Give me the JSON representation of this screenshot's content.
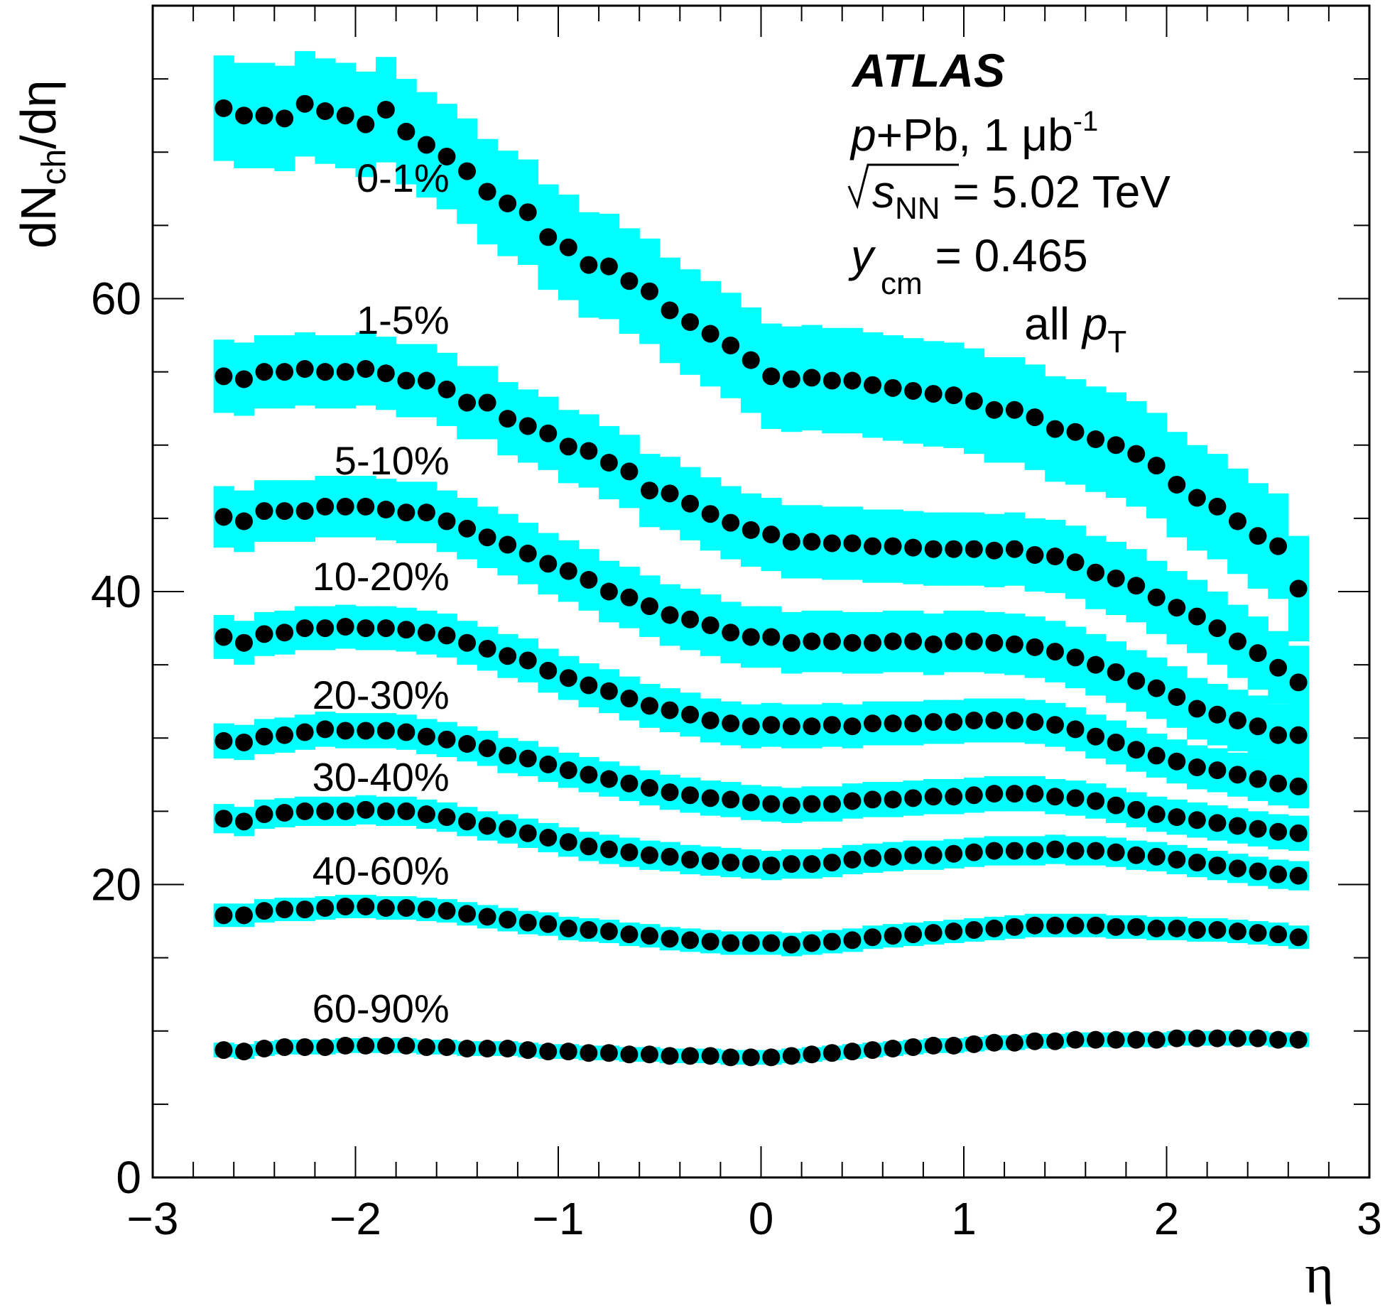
{
  "chart_data": {
    "type": "scatter",
    "xlabel": "η",
    "ylabel": {
      "main": "dN",
      "sub": "ch",
      "tail": "/dη"
    },
    "xlim": [
      -3,
      3
    ],
    "ylim": [
      0,
      80
    ],
    "xticks": [
      -3,
      -2,
      -1,
      0,
      1,
      2,
      3
    ],
    "xtick_labels": [
      "−3",
      "−2",
      "−1",
      "0",
      "1",
      "2",
      "3"
    ],
    "yticks": [
      0,
      20,
      40,
      60
    ],
    "ytick_labels": [
      "0",
      "20",
      "40",
      "60"
    ],
    "grid": false,
    "marker_color": "#000000",
    "band_color": "#00ffff",
    "info": {
      "experiment": "ATLAS",
      "line1": {
        "p": "p",
        "rest": "+Pb,  1 μb",
        "sup": "-1"
      },
      "line2": {
        "s": "s",
        "sub": "NN",
        "rest": " = 5.02 TeV"
      },
      "line3": {
        "y": "y",
        "sub": "cm",
        "rest": " = 0.465"
      },
      "line4": {
        "pre": "all ",
        "p": "p",
        "sub": "T"
      }
    },
    "x": [
      -2.65,
      -2.55,
      -2.45,
      -2.35,
      -2.25,
      -2.15,
      -2.05,
      -1.95,
      -1.85,
      -1.75,
      -1.65,
      -1.55,
      -1.45,
      -1.35,
      -1.25,
      -1.15,
      -1.05,
      -0.95,
      -0.85,
      -0.75,
      -0.65,
      -0.55,
      -0.45,
      -0.35,
      -0.25,
      -0.15,
      -0.05,
      0.05,
      0.15,
      0.25,
      0.35,
      0.45,
      0.55,
      0.65,
      0.75,
      0.85,
      0.95,
      1.05,
      1.15,
      1.25,
      1.35,
      1.45,
      1.55,
      1.65,
      1.75,
      1.85,
      1.95,
      2.05,
      2.15,
      2.25,
      2.35,
      2.45,
      2.55,
      2.65
    ],
    "series": [
      {
        "name": "0-1%",
        "band": 3.6,
        "values": [
          73.0,
          72.5,
          72.5,
          72.3,
          73.3,
          72.8,
          72.5,
          71.9,
          72.9,
          71.4,
          70.5,
          69.7,
          68.7,
          67.3,
          66.5,
          65.9,
          64.2,
          63.5,
          62.3,
          62.2,
          61.2,
          60.5,
          59.2,
          58.4,
          57.6,
          56.8,
          55.8,
          54.7,
          54.5,
          54.6,
          54.4,
          54.4,
          54.1,
          53.9,
          53.7,
          53.5,
          53.4,
          53.0,
          52.4,
          52.4,
          51.9,
          51.1,
          50.9,
          50.4,
          50.0,
          49.4,
          48.6,
          47.3,
          46.4,
          45.8,
          44.8,
          43.8,
          43.1,
          40.2
        ]
      },
      {
        "name": "1-5%",
        "band": 2.5,
        "values": [
          54.7,
          54.5,
          55.0,
          55.0,
          55.2,
          55.0,
          55.0,
          55.2,
          54.9,
          54.4,
          54.4,
          53.8,
          52.9,
          52.9,
          51.8,
          51.3,
          50.8,
          49.9,
          49.6,
          48.8,
          48.2,
          46.9,
          46.7,
          46.0,
          45.3,
          44.7,
          44.2,
          43.9,
          43.4,
          43.4,
          43.3,
          43.3,
          43.1,
          43.1,
          43.0,
          42.9,
          42.9,
          42.9,
          42.8,
          42.9,
          42.5,
          42.4,
          42.0,
          41.3,
          40.9,
          40.4,
          39.6,
          38.9,
          38.3,
          37.5,
          36.6,
          35.8,
          34.8,
          33.8
        ]
      },
      {
        "name": "5-10%",
        "band": 2.1,
        "values": [
          45.1,
          44.8,
          45.5,
          45.5,
          45.5,
          45.8,
          45.8,
          45.8,
          45.6,
          45.4,
          45.4,
          44.8,
          44.3,
          43.7,
          43.2,
          42.6,
          41.9,
          41.4,
          40.8,
          40.0,
          39.6,
          39.0,
          38.4,
          38.1,
          37.7,
          37.2,
          36.9,
          36.9,
          36.5,
          36.6,
          36.6,
          36.5,
          36.5,
          36.6,
          36.6,
          36.4,
          36.6,
          36.6,
          36.5,
          36.4,
          36.2,
          35.9,
          35.5,
          35.0,
          34.5,
          33.9,
          33.4,
          32.8,
          32.0,
          31.6,
          31.2,
          30.8,
          30.2,
          30.2
        ]
      },
      {
        "name": "10-20%",
        "band": 1.5,
        "values": [
          36.9,
          36.5,
          37.1,
          37.2,
          37.5,
          37.5,
          37.6,
          37.5,
          37.5,
          37.4,
          37.2,
          37.0,
          36.5,
          36.1,
          35.6,
          35.3,
          34.6,
          34.1,
          33.6,
          33.2,
          32.7,
          32.2,
          31.9,
          31.6,
          31.2,
          31.0,
          30.8,
          30.9,
          30.8,
          30.8,
          30.9,
          30.8,
          31.0,
          31.0,
          31.0,
          31.1,
          31.1,
          31.2,
          31.2,
          31.2,
          31.1,
          30.9,
          30.6,
          30.1,
          29.7,
          29.2,
          28.8,
          28.4,
          28.0,
          27.8,
          27.5,
          27.2,
          26.9,
          26.7
        ]
      },
      {
        "name": "20-30%",
        "band": 1.2,
        "values": [
          29.8,
          29.7,
          30.1,
          30.2,
          30.4,
          30.6,
          30.5,
          30.5,
          30.5,
          30.4,
          30.1,
          29.9,
          29.6,
          29.3,
          28.8,
          28.6,
          28.2,
          27.8,
          27.5,
          27.2,
          26.9,
          26.6,
          26.3,
          26.1,
          25.9,
          25.8,
          25.6,
          25.5,
          25.4,
          25.5,
          25.5,
          25.7,
          25.8,
          25.8,
          25.9,
          26.0,
          26.0,
          26.1,
          26.2,
          26.2,
          26.2,
          26.0,
          25.9,
          25.7,
          25.4,
          25.1,
          24.8,
          24.6,
          24.4,
          24.2,
          24.0,
          23.8,
          23.6,
          23.5
        ]
      },
      {
        "name": "30-40%",
        "band": 1.0,
        "values": [
          24.5,
          24.3,
          24.8,
          24.9,
          25.0,
          25.0,
          25.0,
          25.1,
          25.0,
          25.0,
          24.8,
          24.6,
          24.3,
          24.0,
          23.8,
          23.5,
          23.2,
          22.9,
          22.6,
          22.4,
          22.2,
          22.0,
          21.9,
          21.7,
          21.6,
          21.5,
          21.4,
          21.3,
          21.4,
          21.4,
          21.5,
          21.7,
          21.8,
          21.9,
          22.0,
          22.0,
          22.1,
          22.2,
          22.3,
          22.3,
          22.3,
          22.4,
          22.3,
          22.3,
          22.2,
          22.0,
          21.9,
          21.7,
          21.5,
          21.3,
          21.1,
          20.9,
          20.7,
          20.6
        ]
      },
      {
        "name": "40-60%",
        "band": 0.8,
        "values": [
          17.9,
          17.9,
          18.2,
          18.3,
          18.3,
          18.4,
          18.5,
          18.5,
          18.4,
          18.4,
          18.3,
          18.2,
          18.0,
          17.8,
          17.6,
          17.4,
          17.3,
          17.0,
          16.9,
          16.8,
          16.6,
          16.5,
          16.3,
          16.2,
          16.1,
          16.0,
          16.0,
          16.0,
          15.9,
          16.0,
          16.1,
          16.2,
          16.4,
          16.5,
          16.6,
          16.7,
          16.8,
          16.9,
          17.0,
          17.1,
          17.2,
          17.2,
          17.2,
          17.2,
          17.1,
          17.1,
          17.0,
          17.0,
          16.9,
          16.9,
          16.8,
          16.7,
          16.6,
          16.4
        ]
      },
      {
        "name": "60-90%",
        "band": 0.5,
        "values": [
          8.7,
          8.6,
          8.8,
          8.9,
          8.9,
          8.9,
          9.0,
          9.0,
          9.0,
          9.0,
          8.9,
          8.9,
          8.8,
          8.8,
          8.8,
          8.7,
          8.6,
          8.6,
          8.5,
          8.5,
          8.4,
          8.4,
          8.3,
          8.3,
          8.3,
          8.2,
          8.2,
          8.2,
          8.3,
          8.4,
          8.5,
          8.6,
          8.7,
          8.8,
          8.9,
          9.0,
          9.0,
          9.1,
          9.2,
          9.2,
          9.3,
          9.3,
          9.4,
          9.4,
          9.4,
          9.4,
          9.4,
          9.5,
          9.5,
          9.5,
          9.5,
          9.5,
          9.4,
          9.4
        ]
      }
    ],
    "series_label_positions": [
      {
        "name": "0-1%",
        "x": -2.15,
        "y": 67.3
      },
      {
        "name": "1-5%",
        "x": -2.15,
        "y": 57.6
      },
      {
        "name": "5-10%",
        "x": -2.15,
        "y": 48.0
      },
      {
        "name": "10-20%",
        "x": -2.15,
        "y": 40.1
      },
      {
        "name": "20-30%",
        "x": -2.15,
        "y": 32.0
      },
      {
        "name": "30-40%",
        "x": -2.15,
        "y": 26.4
      },
      {
        "name": "40-60%",
        "x": -2.15,
        "y": 20.0
      },
      {
        "name": "60-90%",
        "x": -2.15,
        "y": 10.6
      }
    ]
  }
}
